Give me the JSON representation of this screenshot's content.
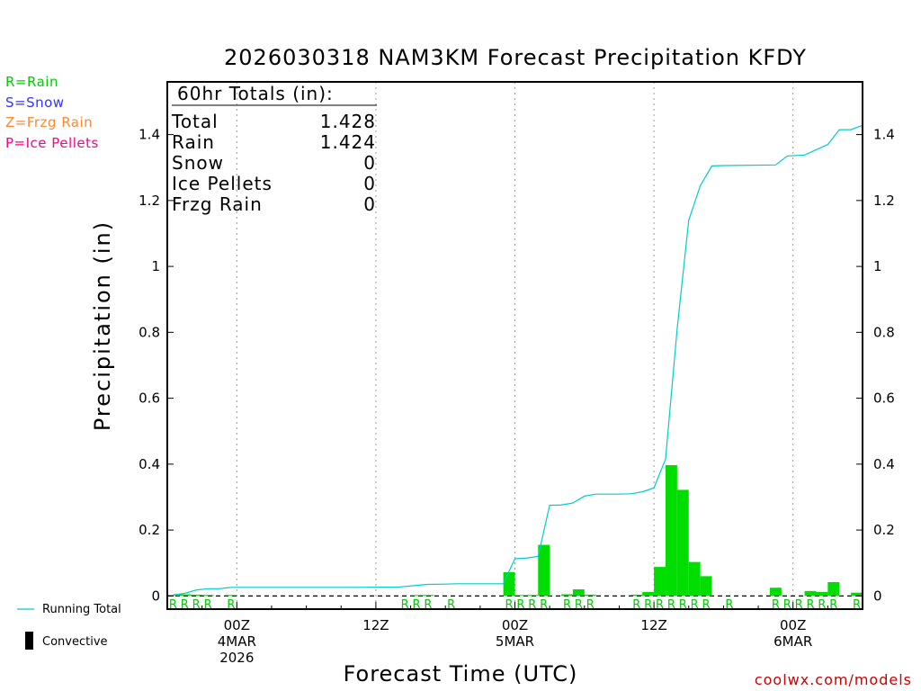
{
  "title": "2026030318 NAM3KM Forecast Precipitation KFDY",
  "precip_type_key": [
    {
      "label": "R=Rain",
      "color": "#00cc00"
    },
    {
      "label": "S=Snow",
      "color": "#3333ff"
    },
    {
      "label": "Z=Frzg Rain",
      "color": "#ff8833"
    },
    {
      "label": "P=Ice Pellets",
      "color": "#ff0088"
    }
  ],
  "totals": {
    "heading": "60hr Totals (in):",
    "rows": [
      {
        "label": "Total",
        "value": "1.428"
      },
      {
        "label": "Rain",
        "value": "1.424"
      },
      {
        "label": "Snow",
        "value": "0"
      },
      {
        "label": "Ice Pellets",
        "value": "0"
      },
      {
        "label": "Frzg Rain",
        "value": "0"
      }
    ]
  },
  "legend": {
    "running_total_label": "Running Total",
    "convective_label": "Convective",
    "running_total_color": "#00cccc",
    "convective_color": "#000000"
  },
  "watermark": "coolwx.com/models",
  "chart_data": {
    "type": "bar",
    "title": "2026030318 NAM3KM Forecast Precipitation KFDY",
    "xlabel": "Forecast Time (UTC)",
    "ylabel": "Precipitation (in)",
    "x_unit": "forecast hour",
    "xlim": [
      0,
      60
    ],
    "ylim": [
      -0.04,
      1.56
    ],
    "yticks": [
      0,
      0.2,
      0.4,
      0.6,
      0.8,
      1,
      1.2,
      1.4
    ],
    "ytick_labels": [
      "0",
      "0.2",
      "0.4",
      "0.6",
      "0.8",
      "1",
      "1.2",
      "1.4"
    ],
    "xticks": [
      {
        "hour": 6,
        "lines": [
          "00Z",
          "4MAR",
          "2026"
        ]
      },
      {
        "hour": 18,
        "lines": [
          "12Z"
        ]
      },
      {
        "hour": 30,
        "lines": [
          "00Z",
          "5MAR"
        ]
      },
      {
        "hour": 42,
        "lines": [
          "12Z"
        ]
      },
      {
        "hour": 54,
        "lines": [
          "00Z",
          "6MAR"
        ]
      }
    ],
    "bar_color": "#00dd00",
    "bars": [
      {
        "hour": 1,
        "value": 0.003
      },
      {
        "hour": 2,
        "value": 0.005
      },
      {
        "hour": 3,
        "value": 0.004
      },
      {
        "hour": 4,
        "value": 0.003
      },
      {
        "hour": 6,
        "value": 0.003
      },
      {
        "hour": 22,
        "value": 0.002
      },
      {
        "hour": 23,
        "value": 0.003
      },
      {
        "hour": 30,
        "value": 0.072
      },
      {
        "hour": 31,
        "value": 0.002
      },
      {
        "hour": 32,
        "value": 0.003
      },
      {
        "hour": 33,
        "value": 0.155
      },
      {
        "hour": 35,
        "value": 0.005
      },
      {
        "hour": 36,
        "value": 0.02
      },
      {
        "hour": 37,
        "value": 0.004
      },
      {
        "hour": 41,
        "value": 0.004
      },
      {
        "hour": 42,
        "value": 0.012
      },
      {
        "hour": 43,
        "value": 0.088
      },
      {
        "hour": 44,
        "value": 0.397
      },
      {
        "hour": 45,
        "value": 0.322
      },
      {
        "hour": 46,
        "value": 0.103
      },
      {
        "hour": 47,
        "value": 0.06
      },
      {
        "hour": 53,
        "value": 0.025
      },
      {
        "hour": 56,
        "value": 0.015
      },
      {
        "hour": 57,
        "value": 0.012
      },
      {
        "hour": 58,
        "value": 0.042
      },
      {
        "hour": 60,
        "value": 0.01
      }
    ],
    "running_total": {
      "name": "Running Total",
      "color": "#00cccc",
      "points": [
        [
          0.5,
          0.003
        ],
        [
          1.5,
          0.008
        ],
        [
          2.5,
          0.018
        ],
        [
          3.5,
          0.022
        ],
        [
          4.5,
          0.022
        ],
        [
          5.5,
          0.026
        ],
        [
          8,
          0.026
        ],
        [
          12,
          0.026
        ],
        [
          16,
          0.026
        ],
        [
          20,
          0.027
        ],
        [
          21.5,
          0.032
        ],
        [
          22.5,
          0.035
        ],
        [
          24,
          0.036
        ],
        [
          25,
          0.037
        ],
        [
          29,
          0.037
        ],
        [
          30,
          0.113
        ],
        [
          31,
          0.115
        ],
        [
          32,
          0.12
        ],
        [
          33,
          0.275
        ],
        [
          34,
          0.276
        ],
        [
          35,
          0.282
        ],
        [
          36,
          0.303
        ],
        [
          37,
          0.309
        ],
        [
          39,
          0.309
        ],
        [
          40,
          0.31
        ],
        [
          41,
          0.316
        ],
        [
          42,
          0.328
        ],
        [
          43,
          0.415
        ],
        [
          44,
          0.81
        ],
        [
          45,
          1.14
        ],
        [
          46,
          1.245
        ],
        [
          47,
          1.305
        ],
        [
          48,
          1.306
        ],
        [
          52.5,
          1.308
        ],
        [
          53.5,
          1.335
        ],
        [
          55,
          1.338
        ],
        [
          57,
          1.37
        ],
        [
          58,
          1.415
        ],
        [
          59,
          1.415
        ],
        [
          60,
          1.428
        ]
      ]
    },
    "precip_type_markers": {
      "letter": "R",
      "color": "#00cc00",
      "hours": [
        1,
        2,
        3,
        4,
        6,
        21,
        22,
        23,
        25,
        30,
        31,
        32,
        33,
        35,
        36,
        37,
        41,
        42,
        43,
        44,
        45,
        46,
        47,
        49,
        53,
        54,
        55,
        56,
        57,
        58,
        60
      ]
    }
  }
}
